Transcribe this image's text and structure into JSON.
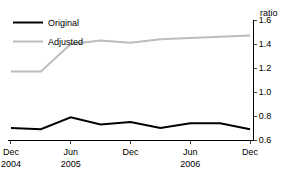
{
  "chart_data": {
    "type": "line",
    "y_label": "ratio",
    "categories": [
      "Dec\n2004",
      null,
      "Jun\n2005",
      null,
      "Dec",
      null,
      "Jun\n2006",
      null,
      "Dec"
    ],
    "series": [
      {
        "name": "Original",
        "color": "#000000",
        "values": [
          0.7,
          0.69,
          0.79,
          0.73,
          0.75,
          0.7,
          0.74,
          0.74,
          0.69
        ]
      },
      {
        "name": "Adjusted",
        "color": "#bdbdbd",
        "values": [
          1.17,
          1.17,
          1.4,
          1.43,
          1.41,
          1.44,
          1.45,
          1.46,
          1.47
        ]
      }
    ],
    "ylim": [
      0.6,
      1.6
    ],
    "yticks": [
      0.6,
      0.8,
      1.0,
      1.2,
      1.4,
      1.6
    ],
    "grid": false,
    "legend": "top left"
  }
}
